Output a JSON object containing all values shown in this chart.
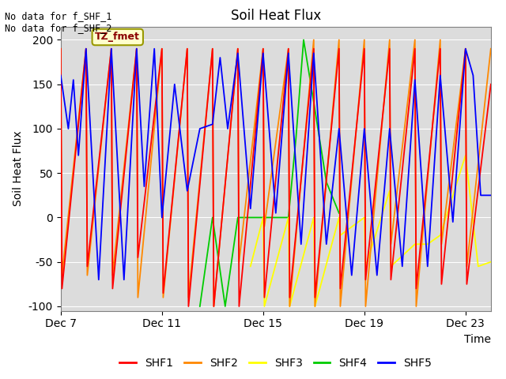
{
  "title": "Soil Heat Flux",
  "ylabel": "Soil Heat Flux",
  "xlabel": "Time",
  "ylim": [
    -105,
    215
  ],
  "xlim": [
    0,
    17
  ],
  "xtick_labels": [
    "Dec 7",
    "Dec 11",
    "Dec 15",
    "Dec 19",
    "Dec 23"
  ],
  "xtick_positions": [
    0,
    4,
    8,
    12,
    16
  ],
  "ytick_labels": [
    "-100",
    "-50",
    "0",
    "50",
    "100",
    "150",
    "200"
  ],
  "ytick_positions": [
    -100,
    -50,
    0,
    50,
    100,
    150,
    200
  ],
  "colors": {
    "SHF1": "#ff0000",
    "SHF2": "#ff8800",
    "SHF3": "#ffff00",
    "SHF4": "#00cc00",
    "SHF5": "#0000ff"
  },
  "annotation_text": "No data for f_SHF_1\nNo data for f_SHF_2",
  "box_label": "TZ_fmet",
  "background_color": "#dcdcdc",
  "grid_color": "#ffffff",
  "SHF1_x": [
    0.0,
    0.05,
    1.0,
    1.05,
    2.0,
    2.05,
    3.0,
    3.05,
    4.0,
    4.05,
    5.0,
    5.05,
    6.0,
    6.05,
    7.0,
    7.05,
    8.0,
    8.05,
    9.0,
    9.05,
    10.0,
    10.05,
    11.0,
    11.05,
    12.0,
    12.05,
    13.0,
    13.05,
    14.0,
    14.05,
    15.0,
    15.05,
    16.0,
    16.05,
    17.0
  ],
  "SHF1_y": [
    190,
    -80,
    190,
    -55,
    190,
    -80,
    190,
    -45,
    190,
    -85,
    190,
    -100,
    190,
    -100,
    190,
    -100,
    190,
    -90,
    190,
    -90,
    190,
    -90,
    190,
    -80,
    190,
    -70,
    190,
    -70,
    190,
    -80,
    190,
    -75,
    190,
    -75,
    150
  ],
  "SHF2_x": [
    0.0,
    0.05,
    1.0,
    1.05,
    2.0,
    2.05,
    3.0,
    3.05,
    4.0,
    4.05,
    5.0,
    5.05,
    6.0,
    6.05,
    7.0,
    7.05,
    8.0,
    8.05,
    9.0,
    9.05,
    10.0,
    10.05,
    11.0,
    11.05,
    12.0,
    12.05,
    13.0,
    13.05,
    14.0,
    14.05,
    15.0,
    15.05,
    16.0,
    16.05,
    17.0
  ],
  "SHF2_y": [
    190,
    -65,
    190,
    -65,
    190,
    -65,
    190,
    -90,
    190,
    -90,
    190,
    -90,
    190,
    -100,
    190,
    -50,
    190,
    -10,
    190,
    -100,
    200,
    -100,
    200,
    -100,
    200,
    -100,
    200,
    -30,
    200,
    -100,
    200,
    -30,
    190,
    -55,
    190
  ],
  "SHF3_x": [
    7.5,
    8.0,
    8.05,
    9.0,
    9.05,
    10.0,
    10.05,
    11.0,
    11.05,
    12.0,
    12.05,
    13.0,
    13.05,
    14.0,
    14.5,
    15.0,
    15.5,
    16.0,
    16.5,
    17.0
  ],
  "SHF3_y": [
    -55,
    0,
    -100,
    0,
    -100,
    0,
    -100,
    0,
    -20,
    0,
    -55,
    30,
    -55,
    -30,
    -30,
    -20,
    25,
    70,
    -55,
    -50
  ],
  "SHF4_x": [
    5.5,
    6.0,
    6.5,
    7.0,
    9.0,
    9.3,
    9.6,
    10.0,
    10.5,
    11.0
  ],
  "SHF4_y": [
    -100,
    0,
    -100,
    0,
    0,
    90,
    200,
    130,
    40,
    5
  ],
  "SHF5_x": [
    0.0,
    0.3,
    0.5,
    0.7,
    1.0,
    1.5,
    2.0,
    2.5,
    3.0,
    3.3,
    3.7,
    4.0,
    4.5,
    5.0,
    5.5,
    6.0,
    6.3,
    6.6,
    7.0,
    7.5,
    8.0,
    8.5,
    9.0,
    9.5,
    10.0,
    10.5,
    11.0,
    11.5,
    12.0,
    12.5,
    13.0,
    13.5,
    14.0,
    14.5,
    15.0,
    15.5,
    16.0,
    16.3,
    16.6,
    17.0
  ],
  "SHF5_y": [
    160,
    100,
    155,
    70,
    190,
    -70,
    190,
    -70,
    190,
    35,
    190,
    0,
    150,
    30,
    100,
    105,
    180,
    100,
    185,
    10,
    185,
    5,
    185,
    -30,
    185,
    -30,
    100,
    -65,
    100,
    -65,
    100,
    -55,
    155,
    -55,
    160,
    -5,
    190,
    160,
    25,
    25
  ]
}
